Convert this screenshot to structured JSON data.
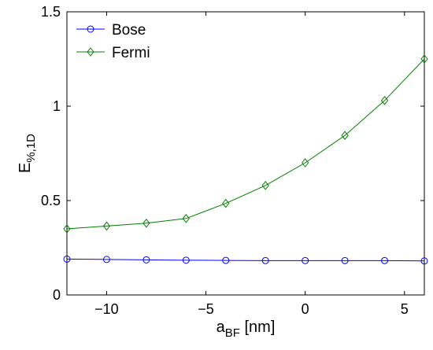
{
  "chart_data": {
    "type": "line",
    "title": "",
    "xlabel": {
      "main": "a",
      "sub": "BF",
      "rest": " [nm]"
    },
    "ylabel": {
      "main": "E",
      "sub": "%,1D"
    },
    "xlim": [
      -12,
      6
    ],
    "ylim": [
      0,
      1.5
    ],
    "xticks": [
      -10,
      -5,
      0,
      5
    ],
    "xtick_labels": [
      "−10",
      "−5",
      "0",
      "5"
    ],
    "yticks": [
      0,
      0.5,
      1,
      1.5
    ],
    "ytick_labels": [
      "0",
      "0.5",
      "1",
      "1.5"
    ],
    "grid": false,
    "legend_position": "top-left",
    "x": [
      -12,
      -10,
      -8,
      -6,
      -4,
      -2,
      0,
      2,
      4,
      6
    ],
    "series": [
      {
        "name": "Bose",
        "color": "#0000ff",
        "marker": "circle",
        "values": [
          0.19,
          0.188,
          0.186,
          0.184,
          0.183,
          0.182,
          0.182,
          0.182,
          0.182,
          0.18
        ]
      },
      {
        "name": "Fermi",
        "color": "#008000",
        "marker": "diamond",
        "values": [
          0.35,
          0.365,
          0.38,
          0.405,
          0.485,
          0.58,
          0.7,
          0.845,
          1.03,
          1.25
        ]
      }
    ]
  }
}
